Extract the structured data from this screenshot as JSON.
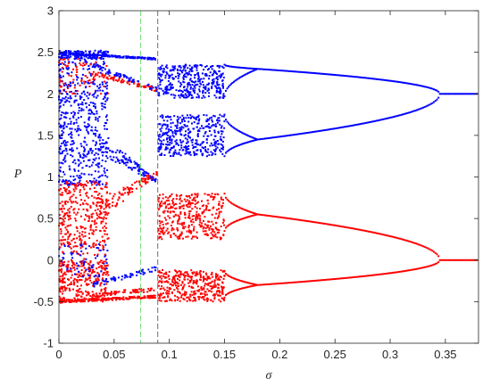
{
  "chart_data": {
    "type": "scatter",
    "title": "",
    "xlabel": "σ",
    "ylabel": "P",
    "xlim": [
      0,
      0.38
    ],
    "ylim": [
      -1,
      3
    ],
    "x_ticks": [
      "0",
      "0.05",
      "0.1",
      "0.15",
      "0.2",
      "0.25",
      "0.3",
      "0.35"
    ],
    "y_ticks": [
      "-1",
      "-0.5",
      "0",
      "0.5",
      "1",
      "1.5",
      "2",
      "2.5",
      "3"
    ],
    "x_tick_values": [
      0,
      0.05,
      0.1,
      0.15,
      0.2,
      0.25,
      0.3,
      0.35
    ],
    "y_tick_values": [
      -1,
      -0.5,
      0,
      0.5,
      1,
      1.5,
      2,
      2.5,
      3
    ],
    "grid": false,
    "legend": "none",
    "reference_lines": [
      {
        "x": 0.074,
        "style": "dashed",
        "color": "#7be07b"
      },
      {
        "x": 0.0895,
        "style": "dashed",
        "color": "#6e6e6e"
      }
    ],
    "series": [
      {
        "color": "#0000ff",
        "period_two_segment": {
          "x_range": [
            0.18,
            0.345
          ],
          "upper_start": 2.3,
          "lower_start": 1.45,
          "merge_at": 2.0
        },
        "period_one_segment": {
          "x_range": [
            0.345,
            0.38
          ],
          "value": 2.0
        },
        "chaotic_band_x": [
          0.09,
          0.15
        ]
      },
      {
        "color": "#ff0000",
        "period_two_segment": {
          "x_range": [
            0.18,
            0.345
          ],
          "upper_start": 0.55,
          "lower_start": -0.3,
          "merge_at": 0.0
        },
        "period_one_segment": {
          "x_range": [
            0.345,
            0.38
          ],
          "value": 0.0
        },
        "chaotic_band_x": [
          0.09,
          0.15
        ]
      }
    ]
  }
}
